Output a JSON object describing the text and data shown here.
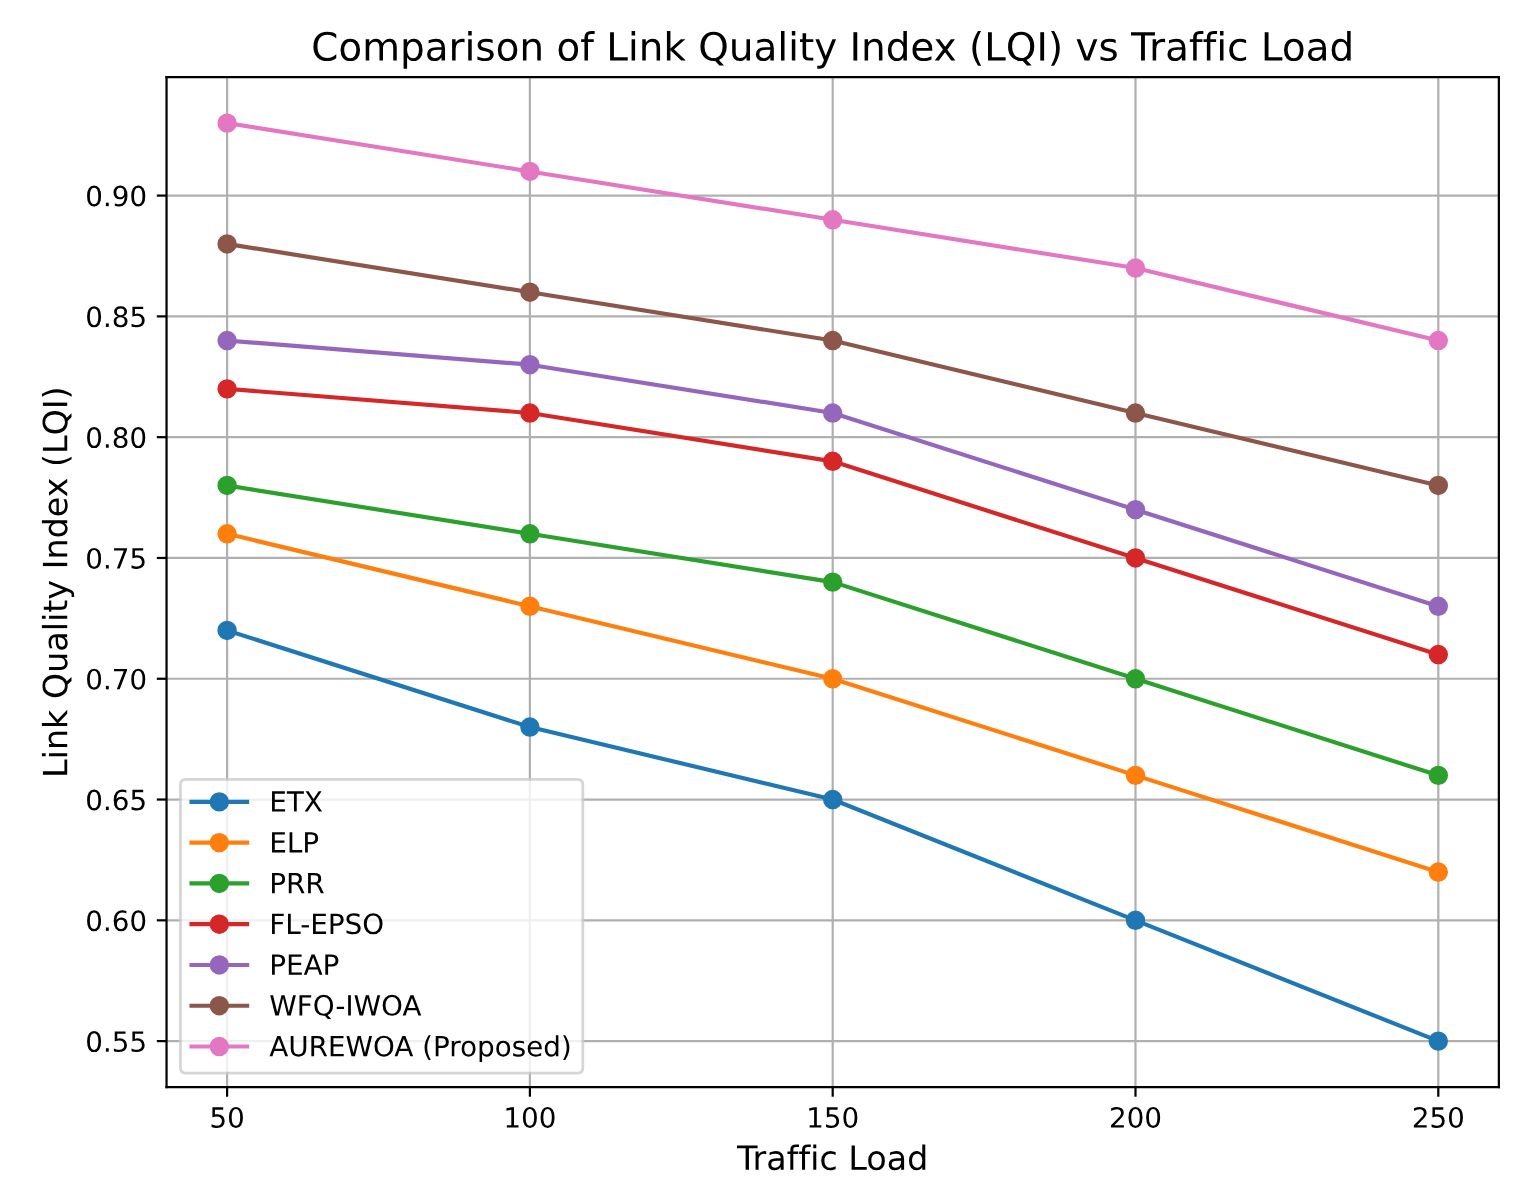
{
  "chart_data": {
    "type": "line",
    "title": "Comparison of Link Quality Index (LQI) vs Traffic Load",
    "xlabel": "Traffic Load",
    "ylabel": "Link Quality Index (LQI)",
    "x": [
      50,
      100,
      150,
      200,
      250
    ],
    "series": [
      {
        "name": "ETX",
        "color": "#1f77b4",
        "values": [
          0.72,
          0.68,
          0.65,
          0.6,
          0.55
        ]
      },
      {
        "name": "ELP",
        "color": "#ff7f0e",
        "values": [
          0.76,
          0.73,
          0.7,
          0.66,
          0.62
        ]
      },
      {
        "name": "PRR",
        "color": "#2ca02c",
        "values": [
          0.78,
          0.76,
          0.74,
          0.7,
          0.66
        ]
      },
      {
        "name": "FL-EPSO",
        "color": "#d62728",
        "values": [
          0.82,
          0.81,
          0.79,
          0.75,
          0.71
        ]
      },
      {
        "name": "PEAP",
        "color": "#9467bd",
        "values": [
          0.84,
          0.83,
          0.81,
          0.77,
          0.73
        ]
      },
      {
        "name": "WFQ-IWOA",
        "color": "#8c564b",
        "values": [
          0.88,
          0.86,
          0.84,
          0.81,
          0.78
        ]
      },
      {
        "name": "AUREWOA (Proposed)",
        "color": "#e377c2",
        "values": [
          0.93,
          0.91,
          0.89,
          0.87,
          0.84
        ]
      }
    ],
    "xlim": [
      40,
      260
    ],
    "xticks": [
      50,
      100,
      150,
      200,
      250
    ],
    "ylim": [
      0.531,
      0.949
    ],
    "yticks": [
      {
        "value": 0.55,
        "label": "0.55"
      },
      {
        "value": 0.6,
        "label": "0.60"
      },
      {
        "value": 0.65,
        "label": "0.65"
      },
      {
        "value": 0.7,
        "label": "0.70"
      },
      {
        "value": 0.75,
        "label": "0.75"
      },
      {
        "value": 0.8,
        "label": "0.80"
      },
      {
        "value": 0.85,
        "label": "0.85"
      },
      {
        "value": 0.9,
        "label": "0.90"
      }
    ],
    "grid": true,
    "legend": "bottom left",
    "marker": "circle",
    "line_style": "solid"
  }
}
